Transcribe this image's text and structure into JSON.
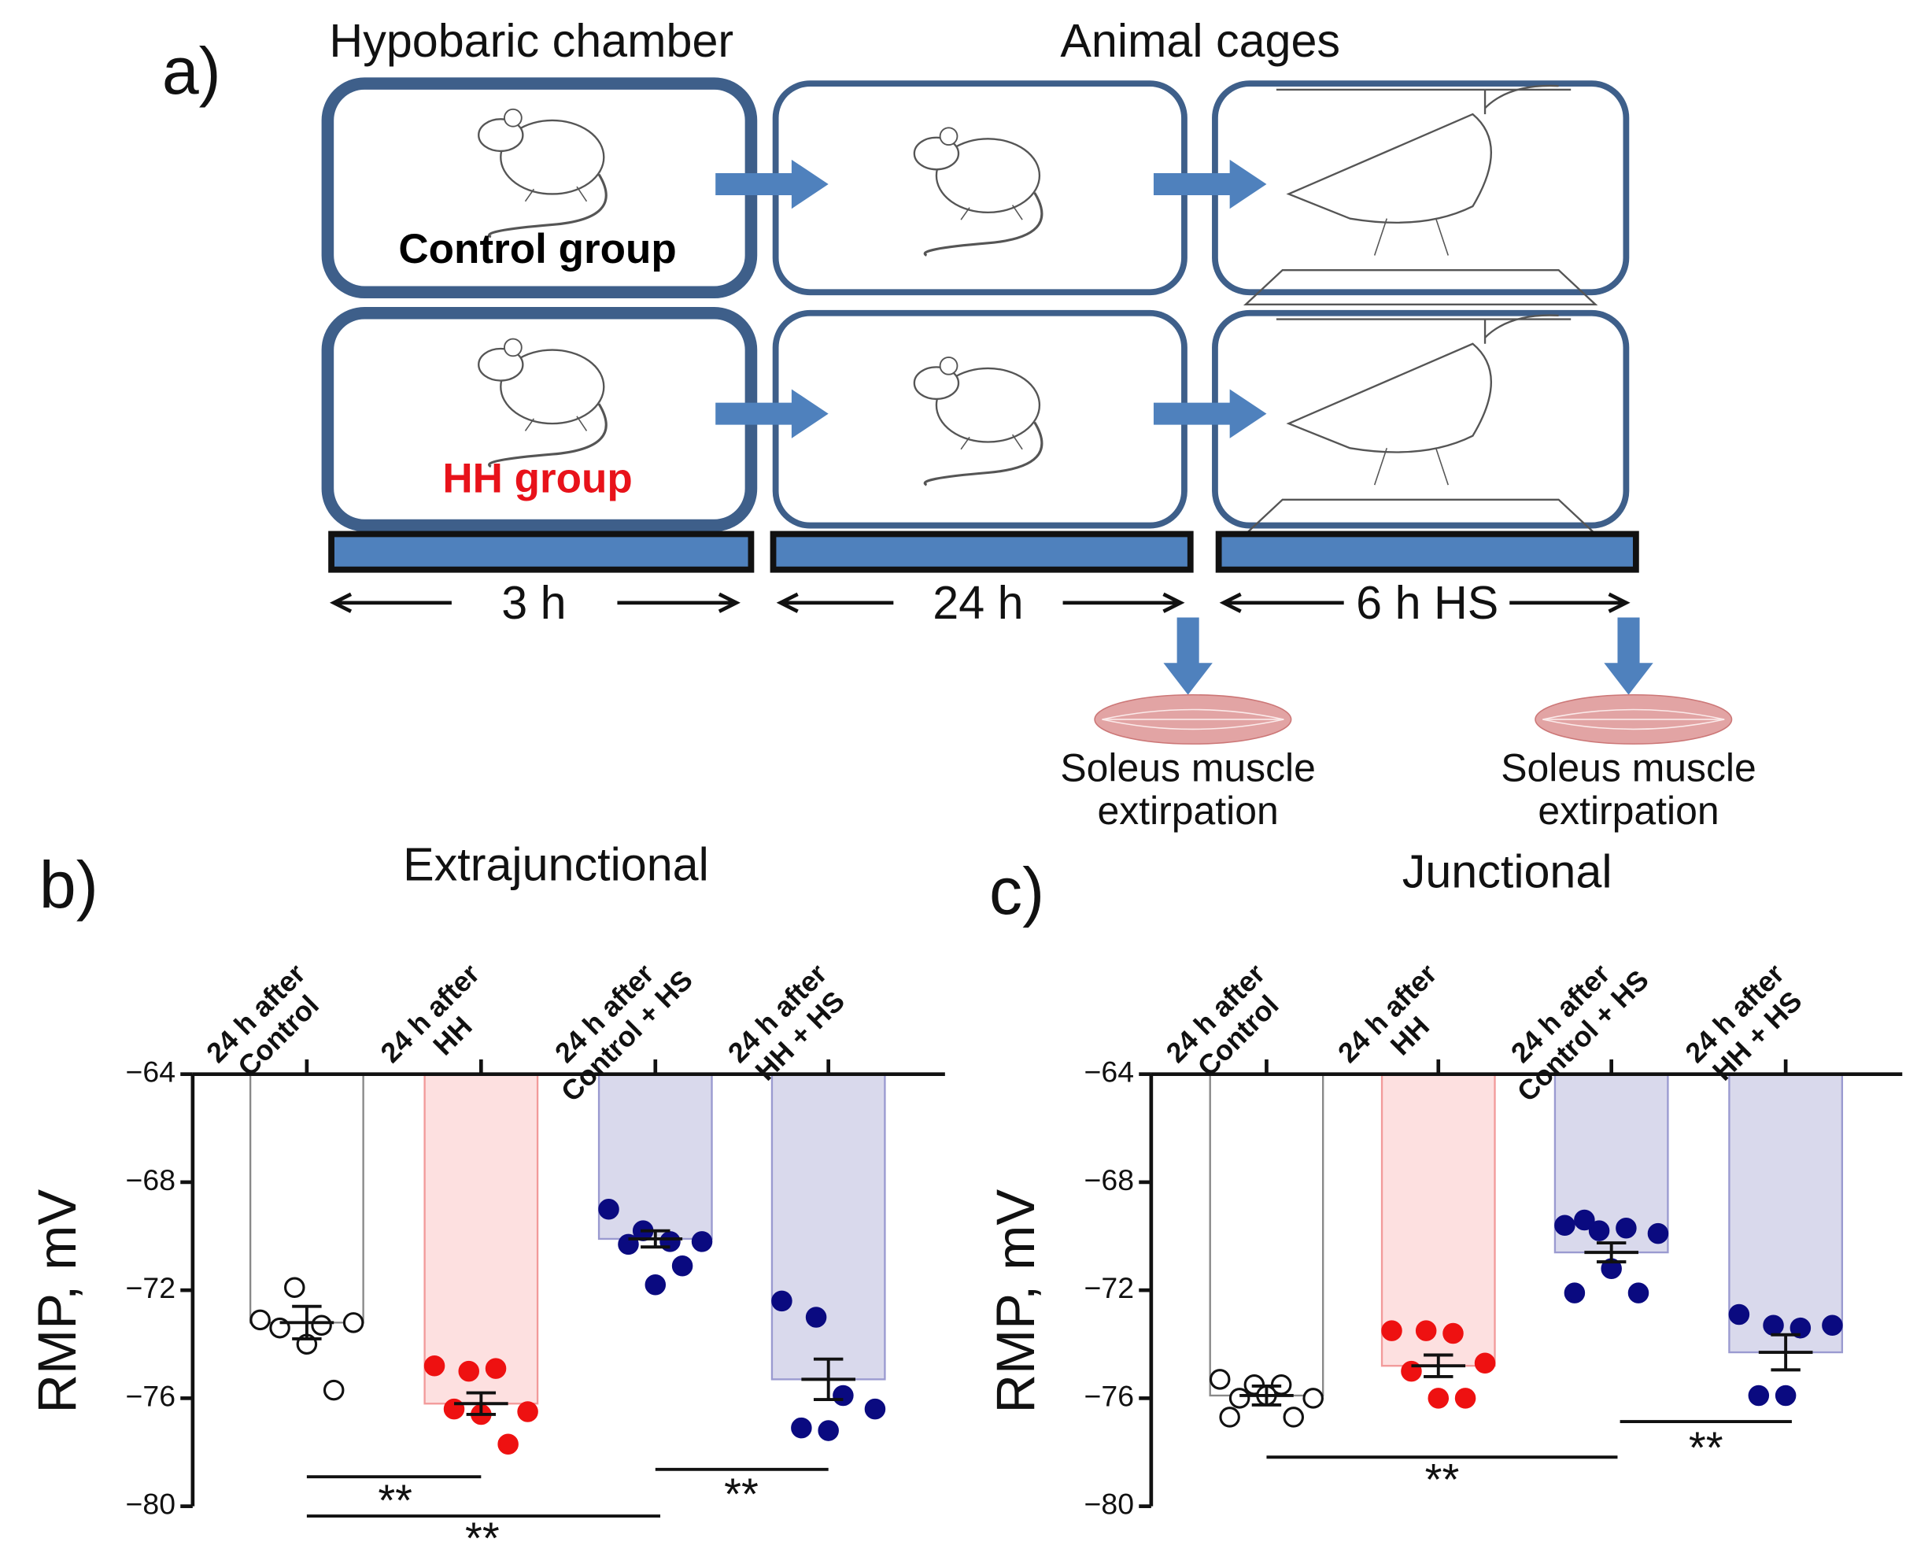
{
  "diagram": {
    "panel_label": "a)",
    "headers": [
      "Hypobaric chamber",
      "Animal cages"
    ],
    "groups": [
      {
        "label": "Control group",
        "color": "#000000"
      },
      {
        "label": "HH group",
        "color": "#e8121a"
      }
    ],
    "durations": [
      "3 h",
      "24 h",
      "6 h HS"
    ],
    "outcomes": [
      [
        "Soleus muscle",
        "extirpation"
      ],
      [
        "Soleus muscle",
        "extirpation"
      ]
    ]
  },
  "chart_data": [
    {
      "type": "bar",
      "panel_label": "b)",
      "title": "Extrajunctional",
      "y_label": "RMP, mV",
      "categories": [
        [
          "24 h after",
          "Control"
        ],
        [
          "24 h after",
          "HH"
        ],
        [
          "24 h after",
          "Control + HS"
        ],
        [
          "24 h after",
          "HH + HS"
        ]
      ],
      "values": [
        -73.2,
        -76.2,
        -70.1,
        -75.3
      ],
      "errors": [
        0.6,
        0.4,
        0.3,
        0.75
      ],
      "bar_colors": [
        "#ffffff",
        "#fde0e0",
        "#d9d9ec",
        "#d9d9ec"
      ],
      "bar_edge_colors": [
        "#888888",
        "#f29a9a",
        "#9a9ad0",
        "#9a9ad0"
      ],
      "points": [
        [
          -73.1,
          -71.9,
          -73.3,
          -73.2,
          -73.4,
          -74.0,
          -75.7
        ],
        [
          -74.8,
          -75.0,
          -74.9,
          -76.5,
          -76.4,
          -76.6,
          -77.7
        ],
        [
          -69.0,
          -69.8,
          -70.2,
          -70.2,
          -70.3,
          -71.8,
          -71.1
        ],
        [
          -72.4,
          -73.0,
          -75.9,
          -76.4,
          -77.1,
          -77.2
        ]
      ],
      "point_colors": [
        "#ffffff",
        "#ee1111",
        "#0a0a80",
        "#0a0a80"
      ],
      "ylim": [
        -80,
        -64
      ],
      "yticks": [
        {
          "value": -64,
          "label": "−64"
        },
        {
          "value": -68,
          "label": "−68"
        },
        {
          "value": -72,
          "label": "−72"
        },
        {
          "value": -76,
          "label": "−76"
        },
        {
          "value": -80,
          "label": "−80"
        }
      ],
      "annotations": [
        "**",
        "**",
        "**"
      ]
    },
    {
      "type": "bar",
      "panel_label": "c)",
      "title": "Junctional",
      "y_label": "RMP, mV",
      "categories": [
        [
          "24 h after",
          "Control"
        ],
        [
          "24 h after",
          "HH"
        ],
        [
          "24 h after",
          "Control + HS"
        ],
        [
          "24 h after",
          "HH + HS"
        ]
      ],
      "values": [
        -75.9,
        -74.8,
        -70.6,
        -74.3
      ],
      "errors": [
        0.35,
        0.4,
        0.35,
        0.65
      ],
      "bar_colors": [
        "#ffffff",
        "#fde0e0",
        "#d9d9ec",
        "#d9d9ec"
      ],
      "bar_edge_colors": [
        "#888888",
        "#f29a9a",
        "#9a9ad0",
        "#9a9ad0"
      ],
      "points": [
        [
          -75.3,
          -75.5,
          -75.5,
          -76.0,
          -76.0,
          -75.9,
          -76.7,
          -76.7
        ],
        [
          -73.5,
          -73.5,
          -73.6,
          -74.7,
          -75.0,
          -76.0,
          -76.0
        ],
        [
          -69.6,
          -69.8,
          -69.7,
          -69.9,
          -69.4,
          -71.2,
          -72.1,
          -72.1
        ],
        [
          -72.9,
          -73.3,
          -73.4,
          -73.3,
          -75.9,
          -75.9
        ]
      ],
      "point_colors": [
        "#ffffff",
        "#ee1111",
        "#0a0a80",
        "#0a0a80"
      ],
      "ylim": [
        -80,
        -64
      ],
      "yticks": [
        {
          "value": -64,
          "label": "−64"
        },
        {
          "value": -68,
          "label": "−68"
        },
        {
          "value": -72,
          "label": "−72"
        },
        {
          "value": -76,
          "label": "−76"
        },
        {
          "value": -80,
          "label": "−80"
        }
      ],
      "annotations": [
        "**",
        "**"
      ]
    }
  ]
}
